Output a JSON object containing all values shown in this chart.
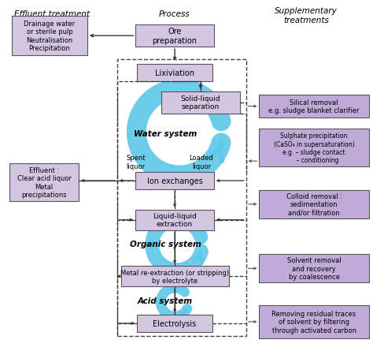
{
  "bg_color": "#ffffff",
  "box_fill_light": "#d4c5e2",
  "box_fill_right": "#c0aad8",
  "title_col1": "Effluent treatment",
  "title_col2": "Process",
  "title_col3": "Supplementary\ntreatments",
  "cyan_color": "#5BC8E8"
}
